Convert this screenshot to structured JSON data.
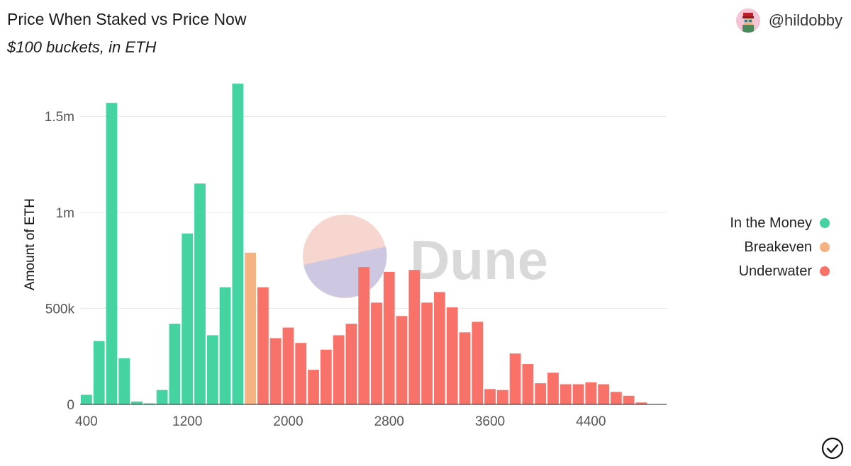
{
  "header": {
    "title": "Price When Staked vs Price Now",
    "subtitle": "$100 buckets, in ETH",
    "author_handle": "@hildobby",
    "watermark": "Dune"
  },
  "colors": {
    "In the Money": "#45d4a1",
    "Breakeven": "#f5b382",
    "Underwater": "#f8726a"
  },
  "chart_data": {
    "type": "bar",
    "ylabel": "Amount of ETH",
    "xlabel": "",
    "xlim": [
      350,
      5000
    ],
    "ylim": [
      0,
      1700000
    ],
    "x_ticks": [
      {
        "value": 400,
        "label": "400"
      },
      {
        "value": 1200,
        "label": "1200"
      },
      {
        "value": 2000,
        "label": "2000"
      },
      {
        "value": 2800,
        "label": "2800"
      },
      {
        "value": 3600,
        "label": "3600"
      },
      {
        "value": 4400,
        "label": "4400"
      }
    ],
    "y_ticks": [
      {
        "value": 0,
        "label": "0"
      },
      {
        "value": 500000,
        "label": "500k"
      },
      {
        "value": 1000000,
        "label": "1m"
      },
      {
        "value": 1500000,
        "label": "1.5m"
      }
    ],
    "grid": true,
    "legend_position": "right",
    "series": [
      {
        "name": "In the Money",
        "x": [
          400,
          500,
          600,
          700,
          800,
          900,
          1000,
          1100,
          1200,
          1300,
          1400,
          1500,
          1600
        ],
        "values": [
          50000,
          330000,
          1570000,
          240000,
          15000,
          5000,
          75000,
          420000,
          890000,
          1150000,
          360000,
          610000,
          1670000
        ]
      },
      {
        "name": "Breakeven",
        "x": [
          1700
        ],
        "values": [
          790000
        ]
      },
      {
        "name": "Underwater",
        "x": [
          1800,
          1900,
          2000,
          2100,
          2200,
          2300,
          2400,
          2500,
          2600,
          2700,
          2800,
          2900,
          3000,
          3100,
          3200,
          3300,
          3400,
          3500,
          3600,
          3700,
          3800,
          3900,
          4000,
          4100,
          4200,
          4300,
          4400,
          4500,
          4600,
          4700,
          4800
        ],
        "values": [
          610000,
          345000,
          400000,
          320000,
          180000,
          285000,
          360000,
          420000,
          715000,
          530000,
          690000,
          460000,
          700000,
          530000,
          585000,
          505000,
          375000,
          430000,
          80000,
          75000,
          265000,
          210000,
          110000,
          165000,
          105000,
          105000,
          115000,
          105000,
          65000,
          45000,
          10000
        ]
      }
    ]
  }
}
